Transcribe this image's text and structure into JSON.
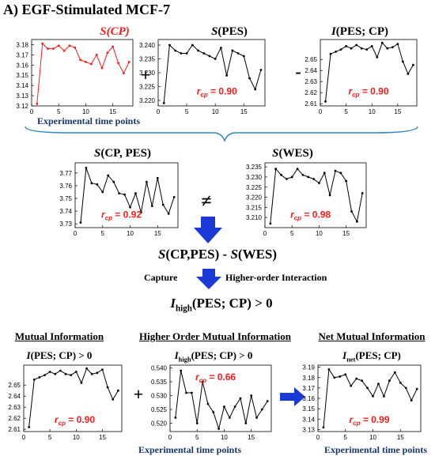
{
  "heading": "A) EGF-Stimulated MCF-7",
  "top_row": {
    "titles": [
      "S(CP)",
      "S(PES)",
      "I(PES; CP)"
    ],
    "operators": [
      "+",
      "-"
    ],
    "caption": "Experimental time points"
  },
  "middle_row": {
    "titles": [
      "S(CP, PES)",
      "S(WES)"
    ],
    "operator": "≠"
  },
  "formula": "S(CP,PES) - S(WES)",
  "capture": {
    "left": "Capture",
    "right": "Higher-order Interaction"
  },
  "result": "I_high(PES; CP) > 0",
  "bottom_row": {
    "section_titles": [
      "Mutual Information",
      "Higher Order Mutual Information",
      "Net Mutual Information"
    ],
    "subtitles": [
      "I(PES; CP) > 0",
      "I_high(PES; CP) > 0",
      "I_net(PES; CP)"
    ],
    "operator": "+",
    "captions": [
      "Experimental time points",
      "Experimental time points"
    ]
  },
  "colors": {
    "red": "#ff1a1a",
    "navy": "#17386b",
    "arrow_blue": "#1a39d6",
    "brace": "#2e86c1"
  },
  "chart_data": [
    {
      "id": "s_cp",
      "type": "line",
      "color": "#ff1a1a",
      "x": [
        1,
        2,
        3,
        4,
        5,
        6,
        7,
        8,
        9,
        10,
        11,
        12,
        13,
        14,
        15,
        16,
        17,
        18
      ],
      "y": [
        3.122,
        3.181,
        3.176,
        3.176,
        3.179,
        3.174,
        3.179,
        3.177,
        3.165,
        3.163,
        3.161,
        3.17,
        3.157,
        3.172,
        3.178,
        3.162,
        3.152,
        3.163
      ],
      "xlim": [
        0,
        18.7
      ],
      "ylim": [
        3.12,
        3.185
      ],
      "xticks": [
        0,
        5,
        10,
        15
      ],
      "yticks": [
        3.12,
        3.13,
        3.14,
        3.15,
        3.16,
        3.17,
        3.18
      ],
      "rcp": ""
    },
    {
      "id": "s_pes",
      "type": "line",
      "color": "#000000",
      "x": [
        1,
        2,
        3,
        4,
        5,
        6,
        7,
        8,
        9,
        10,
        11,
        12,
        13,
        14,
        15,
        16,
        17,
        18
      ],
      "y": [
        3.219,
        3.24,
        3.238,
        3.237,
        3.237,
        3.24,
        3.238,
        3.237,
        3.236,
        3.235,
        3.239,
        3.229,
        3.238,
        3.237,
        3.236,
        3.228,
        3.224,
        3.231
      ],
      "xlim": [
        0,
        18.7
      ],
      "ylim": [
        3.218,
        3.242
      ],
      "xticks": [
        0,
        5,
        10,
        15
      ],
      "yticks": [
        3.22,
        3.225,
        3.23,
        3.235,
        3.24
      ],
      "rcp": "= 0.90"
    },
    {
      "id": "i_pes_cp",
      "type": "line",
      "color": "#000000",
      "x": [
        1,
        2,
        3,
        4,
        5,
        6,
        7,
        8,
        9,
        10,
        11,
        12,
        13,
        14,
        15,
        16,
        17,
        18
      ],
      "y": [
        2.612,
        2.655,
        2.657,
        2.659,
        2.662,
        2.66,
        2.663,
        2.66,
        2.659,
        2.662,
        2.652,
        2.665,
        2.66,
        2.661,
        2.664,
        2.648,
        2.637,
        2.645
      ],
      "xlim": [
        0,
        18.7
      ],
      "ylim": [
        2.608,
        2.668
      ],
      "xticks": [
        0,
        5,
        10,
        15
      ],
      "yticks": [
        2.61,
        2.62,
        2.63,
        2.64,
        2.65
      ],
      "rcp": "= 0.90"
    },
    {
      "id": "s_cp_pes",
      "type": "line",
      "color": "#000000",
      "x": [
        1,
        2,
        3,
        4,
        5,
        6,
        7,
        8,
        9,
        10,
        11,
        12,
        13,
        14,
        15,
        16,
        17,
        18
      ],
      "y": [
        3.731,
        3.774,
        3.762,
        3.761,
        3.755,
        3.768,
        3.763,
        3.754,
        3.753,
        3.743,
        3.754,
        3.739,
        3.763,
        3.744,
        3.766,
        3.745,
        3.738,
        3.751
      ],
      "xlim": [
        0,
        18.7
      ],
      "ylim": [
        3.727,
        3.778
      ],
      "xticks": [
        0,
        5,
        10,
        15
      ],
      "yticks": [
        3.73,
        3.74,
        3.75,
        3.76,
        3.77
      ],
      "rcp": "= 0.92"
    },
    {
      "id": "s_wes",
      "type": "line",
      "color": "#000000",
      "x": [
        1,
        2,
        3,
        4,
        5,
        6,
        7,
        8,
        9,
        10,
        11,
        12,
        13,
        14,
        15,
        16,
        17,
        18
      ],
      "y": [
        3.207,
        3.234,
        3.231,
        3.229,
        3.23,
        3.234,
        3.231,
        3.23,
        3.229,
        3.227,
        3.232,
        3.221,
        3.233,
        3.232,
        3.228,
        3.213,
        3.208,
        3.222
      ],
      "xlim": [
        0,
        18.7
      ],
      "ylim": [
        3.205,
        3.237
      ],
      "xticks": [
        0,
        5,
        10,
        15
      ],
      "yticks": [
        3.21,
        3.215,
        3.22,
        3.225,
        3.23,
        3.235
      ],
      "rcp": "= 0.98"
    },
    {
      "id": "mi_bottom",
      "type": "line",
      "color": "#000000",
      "x": [
        1,
        2,
        3,
        4,
        5,
        6,
        7,
        8,
        9,
        10,
        11,
        12,
        13,
        14,
        15,
        16,
        17,
        18
      ],
      "y": [
        2.612,
        2.655,
        2.657,
        2.659,
        2.662,
        2.66,
        2.663,
        2.66,
        2.659,
        2.662,
        2.652,
        2.665,
        2.66,
        2.661,
        2.664,
        2.648,
        2.637,
        2.645
      ],
      "xlim": [
        0,
        18.7
      ],
      "ylim": [
        2.608,
        2.668
      ],
      "xticks": [
        0,
        5,
        10,
        15
      ],
      "yticks": [
        2.61,
        2.62,
        2.63,
        2.64,
        2.65
      ],
      "rcp": "= 0.90"
    },
    {
      "id": "i_high",
      "type": "line",
      "color": "#000000",
      "x": [
        1,
        2,
        3,
        4,
        5,
        6,
        7,
        8,
        9,
        10,
        11,
        12,
        13,
        14,
        15,
        16,
        17,
        18
      ],
      "y": [
        0.522,
        0.539,
        0.531,
        0.531,
        0.52,
        0.535,
        0.527,
        0.524,
        0.518,
        0.526,
        0.522,
        0.526,
        0.529,
        0.52,
        0.53,
        0.522,
        0.525,
        0.528
      ],
      "xlim": [
        0,
        18.7
      ],
      "ylim": [
        0.517,
        0.541
      ],
      "xticks": [
        0,
        5,
        10,
        15
      ],
      "yticks": [
        0.52,
        0.525,
        0.53,
        0.535,
        0.54
      ],
      "rcp": "= 0.66"
    },
    {
      "id": "i_net",
      "type": "line",
      "color": "#000000",
      "x": [
        1,
        2,
        3,
        4,
        5,
        6,
        7,
        8,
        9,
        10,
        11,
        12,
        13,
        14,
        15,
        16,
        17,
        18
      ],
      "y": [
        3.132,
        3.188,
        3.18,
        3.181,
        3.183,
        3.172,
        3.179,
        3.177,
        3.17,
        3.162,
        3.174,
        3.162,
        3.177,
        3.185,
        3.175,
        3.17,
        3.158,
        3.169
      ],
      "xlim": [
        0,
        18.7
      ],
      "ylim": [
        3.128,
        3.192
      ],
      "xticks": [
        0,
        5,
        10,
        15
      ],
      "yticks": [
        3.13,
        3.14,
        3.15,
        3.16,
        3.17,
        3.18,
        3.19
      ],
      "rcp": "= 0.99"
    }
  ]
}
